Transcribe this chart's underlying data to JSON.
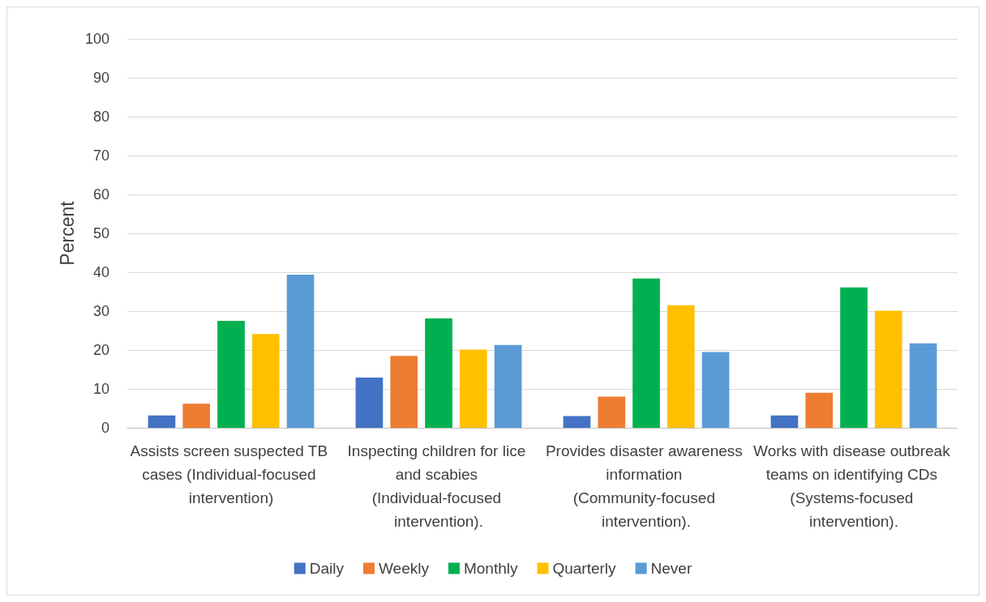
{
  "chart_data": {
    "type": "bar",
    "ylabel": "Percent",
    "categories": [
      "Assists screen suspected TB cases (Individual-focused intervention)",
      "Inspecting children for lice and scabies (Individual-focused intervention).",
      "Provides disaster awareness information (Community-focused intervention).",
      "Works with disease outbreak teams on identifying CDs (Systems-focused intervention)."
    ],
    "series": [
      {
        "name": "Daily",
        "color": "#4472c4",
        "values": [
          3.2,
          12.9,
          3.0,
          3.2
        ]
      },
      {
        "name": "Weekly",
        "color": "#ed7d31",
        "values": [
          6.2,
          18.5,
          8.0,
          9.0
        ]
      },
      {
        "name": "Monthly",
        "color": "#00b050",
        "values": [
          27.5,
          28.1,
          38.4,
          36.1
        ]
      },
      {
        "name": "Quarterly",
        "color": "#ffc000",
        "values": [
          24.1,
          20.1,
          31.5,
          30.1
        ]
      },
      {
        "name": "Never",
        "color": "#5b9bd5",
        "values": [
          39.4,
          21.3,
          19.5,
          21.7
        ]
      }
    ],
    "ylim": [
      0,
      100
    ],
    "yticks": [
      0,
      10,
      20,
      30,
      40,
      50,
      60,
      70,
      80,
      90,
      100
    ],
    "grid": "y",
    "legend": "bottom"
  }
}
